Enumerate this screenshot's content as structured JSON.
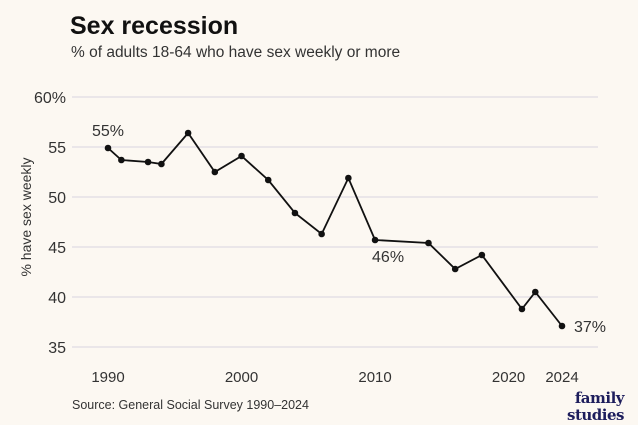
{
  "chart_data": {
    "type": "line",
    "title": "Sex recession",
    "subtitle": "% of adults 18-64 who have sex weekly or more",
    "ylabel": "% have sex weekly",
    "xlabel": "",
    "source": "Source: General Social Survey 1990–2024",
    "ylim": [
      35,
      60
    ],
    "xlim": [
      1990,
      2024
    ],
    "yticks": [
      35,
      40,
      45,
      50,
      55,
      60
    ],
    "ytick_labels": [
      "35",
      "40",
      "45",
      "50",
      "55",
      "60%"
    ],
    "xticks": [
      1990,
      2000,
      2010,
      2020,
      2024
    ],
    "xtick_labels": [
      "1990",
      "2000",
      "2010",
      "2020",
      "2024"
    ],
    "grid": "horizontal",
    "line_color": "#111111",
    "series": [
      {
        "x": [
          1990,
          1991,
          1993,
          1994,
          1996,
          1998,
          2000,
          2002,
          2004,
          2006,
          2008,
          2010,
          2014,
          2016,
          2018,
          2021,
          2022,
          2024
        ],
        "y": [
          54.9,
          53.7,
          53.5,
          53.3,
          56.4,
          52.5,
          54.1,
          51.7,
          48.4,
          46.3,
          51.9,
          45.7,
          45.4,
          42.8,
          44.2,
          38.8,
          40.5,
          37.1
        ]
      }
    ],
    "annotations": [
      {
        "x": 1990,
        "y": 54.9,
        "text": "55%"
      },
      {
        "x": 2010,
        "y": 45.7,
        "text": "46%"
      },
      {
        "x": 2024,
        "y": 37.1,
        "text": "37%"
      }
    ]
  },
  "logo": {
    "line1": "family",
    "line2": "studies",
    "color": "#1d1d5c"
  }
}
